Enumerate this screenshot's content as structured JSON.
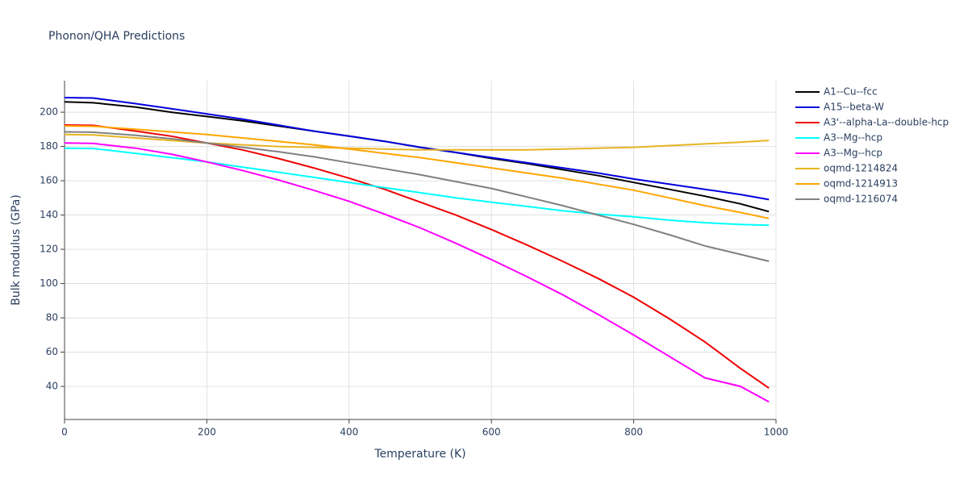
{
  "chart_data": {
    "type": "line",
    "title": "Phonon/QHA Predictions",
    "x_label": "Temperature (K)",
    "y_label": "Bulk modulus (GPa)",
    "x": [
      0,
      40,
      100,
      150,
      200,
      250,
      300,
      350,
      400,
      450,
      500,
      550,
      600,
      650,
      700,
      750,
      800,
      850,
      900,
      950,
      990
    ],
    "series": [
      {
        "name": "A1--Cu--fcc",
        "color": "#000000",
        "values": [
          206,
          205.5,
          203,
          200,
          197.5,
          195,
          192,
          189,
          186,
          183,
          179.5,
          176.5,
          173,
          170,
          166.5,
          163,
          159,
          155,
          151,
          146.5,
          142
        ]
      },
      {
        "name": "A15--beta-W",
        "color": "#0000dd",
        "values": [
          208.5,
          208.3,
          205,
          202,
          199,
          196,
          192.5,
          189,
          186,
          183,
          179.5,
          176.5,
          173.5,
          170.5,
          167.5,
          164.5,
          161,
          158,
          155,
          152,
          149
        ]
      },
      {
        "name": "A3'--alpha-La--double-hcp",
        "color": "#ee0000",
        "values": [
          192.5,
          192.3,
          189,
          186,
          182,
          178,
          173,
          167.5,
          161.5,
          155,
          147.5,
          140,
          131.5,
          122.5,
          113,
          103,
          92,
          79.5,
          66,
          50.5,
          39
        ]
      },
      {
        "name": "A3--Mg--hcp",
        "color": "#00ffff",
        "values": [
          179,
          178.8,
          176,
          173.5,
          171,
          168,
          165,
          162,
          159,
          156,
          153,
          150,
          147.5,
          145,
          142.5,
          140.5,
          139,
          137,
          135.5,
          134.5,
          134
        ]
      },
      {
        "name": "A3--Mg--hcp",
        "color": "#ff00ff",
        "values": [
          182,
          181.8,
          179,
          175.5,
          171,
          166,
          160.5,
          154.5,
          148,
          140.5,
          132.5,
          123.5,
          114,
          104,
          93.5,
          82,
          70,
          57.5,
          45,
          40,
          31
        ]
      },
      {
        "name": "oqmd-1214824",
        "color": "#e6b422",
        "values": [
          187,
          186.7,
          185,
          183.5,
          182,
          181,
          180,
          179.5,
          179,
          178.5,
          178,
          178,
          178,
          178,
          178.5,
          179,
          179.5,
          180.5,
          181.5,
          182.5,
          183.5
        ]
      },
      {
        "name": "oqmd-1214913",
        "color": "#ffa500",
        "values": [
          192,
          191.8,
          190,
          188.5,
          187,
          185,
          183,
          181,
          178.5,
          176,
          173.5,
          170.5,
          167.5,
          164.5,
          161.5,
          158,
          154.5,
          150,
          145.5,
          141.5,
          138
        ]
      },
      {
        "name": "oqmd-1216074",
        "color": "#808080",
        "values": [
          188.5,
          188.3,
          186.5,
          184.5,
          182,
          179.5,
          177,
          174,
          170.5,
          167,
          163.5,
          159.5,
          155.5,
          150.5,
          145.5,
          140,
          134.5,
          128.5,
          122,
          117,
          113
        ]
      }
    ],
    "xlim": [
      0,
      1000
    ],
    "xticks": [
      0,
      200,
      400,
      600,
      800,
      1000
    ],
    "ylim": [
      20.7,
      218.4
    ],
    "yticks": [
      40,
      60,
      80,
      100,
      120,
      140,
      160,
      180,
      200
    ],
    "grid": true
  }
}
